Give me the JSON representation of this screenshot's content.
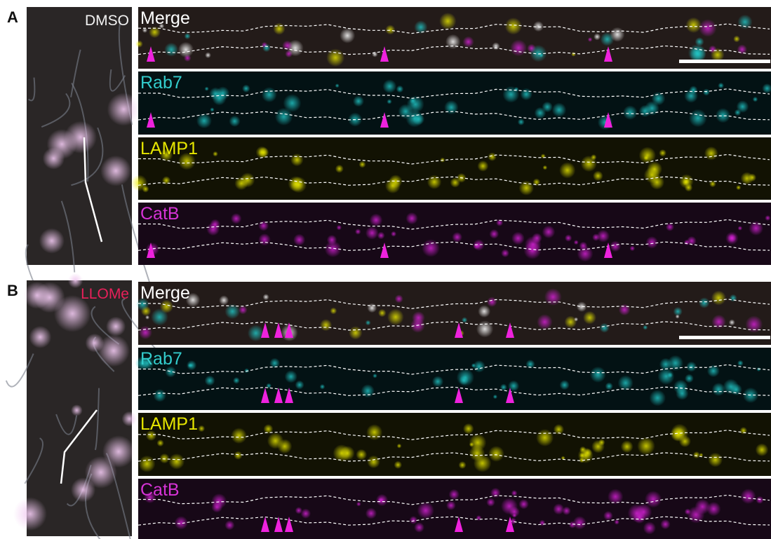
{
  "panels": [
    {
      "letter": "A",
      "condition": "DMSO",
      "channels": [
        "Merge",
        "Rab7",
        "LAMP1",
        "CatB"
      ]
    },
    {
      "letter": "B",
      "condition": "LLOMe",
      "channels": [
        "Merge",
        "Rab7",
        "LAMP1",
        "CatB"
      ]
    }
  ]
}
